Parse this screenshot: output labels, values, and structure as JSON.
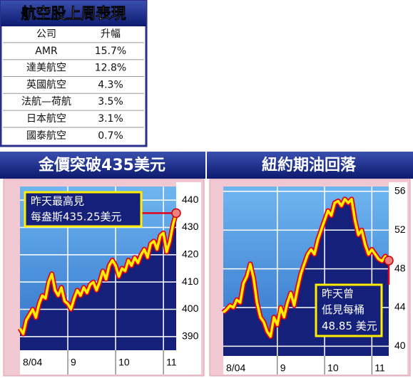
{
  "table": {
    "title": "航空股上周表現",
    "header": [
      "公司",
      "升幅"
    ],
    "rows": [
      [
        "AMR",
        "15.7%"
      ],
      [
        "達美航空",
        "12.8%"
      ],
      [
        "英國航空",
        "4.3%"
      ],
      [
        "法航—荷航",
        "3.5%"
      ],
      [
        "日本航空",
        "3.1%"
      ],
      [
        "國泰航空",
        "0.7%"
      ]
    ]
  },
  "chart_data": [
    {
      "type": "line",
      "title": "金價突破435美元",
      "categories": [
        "8/04",
        null,
        null,
        null,
        null,
        null,
        null,
        null,
        null,
        null,
        null,
        null,
        null,
        null,
        null,
        "9",
        null,
        null,
        null,
        null,
        null,
        null,
        null,
        null,
        null,
        null,
        null,
        null,
        null,
        null,
        "10",
        null,
        null,
        null,
        null,
        null,
        null,
        null,
        null,
        null,
        null,
        null,
        null,
        null,
        null,
        "11",
        null,
        null,
        null,
        null
      ],
      "values": [
        393,
        391,
        396,
        398,
        400,
        397,
        402,
        405,
        404,
        410,
        413,
        407,
        405,
        408,
        403,
        402,
        400,
        404,
        407,
        405,
        408,
        406,
        409,
        410,
        407,
        410,
        414,
        411,
        416,
        418,
        416,
        412,
        415,
        414,
        418,
        416,
        419,
        417,
        420,
        422,
        419,
        424,
        425,
        422,
        427,
        428,
        421,
        425,
        431,
        435.25
      ],
      "color": "#ffee00",
      "ylim": [
        385,
        445
      ],
      "yticks": [
        390,
        400,
        410,
        420,
        430,
        440
      ],
      "grid": true,
      "annotation": [
        "昨天最高見",
        "每盎斯435.25美元"
      ]
    },
    {
      "type": "line",
      "title": "紐約期油回落",
      "categories": [
        "8/04",
        null,
        null,
        null,
        null,
        null,
        null,
        null,
        null,
        null,
        null,
        null,
        null,
        null,
        null,
        null,
        "9",
        null,
        null,
        null,
        null,
        null,
        null,
        null,
        null,
        null,
        null,
        null,
        null,
        null,
        "10",
        null,
        null,
        null,
        null,
        null,
        null,
        null,
        null,
        null,
        null,
        null,
        null,
        null,
        "11",
        null,
        null,
        null,
        null,
        null
      ],
      "values": [
        43.5,
        43.8,
        44.2,
        44.0,
        44.8,
        44.5,
        46.5,
        47.2,
        48.5,
        47.0,
        44.5,
        43.0,
        42.5,
        41.5,
        41.0,
        43.0,
        42.2,
        44.0,
        43.0,
        44.5,
        45.5,
        44.2,
        46.0,
        47.5,
        48.5,
        49.5,
        50.0,
        49.5,
        51.0,
        52.0,
        53.0,
        54.0,
        53.5,
        54.8,
        55.0,
        54.5,
        55.2,
        54.8,
        55.2,
        53.0,
        51.5,
        52.0,
        50.5,
        49.5,
        50.0,
        49.5,
        49.0,
        48.8,
        49.3,
        48.85
      ],
      "color": "#ffee00",
      "ylim": [
        39,
        56.5
      ],
      "yticks": [
        40,
        44,
        48,
        52,
        56
      ],
      "grid": true,
      "annotation": [
        "昨天曾",
        "低見每桶",
        "48.85 美元"
      ]
    }
  ]
}
